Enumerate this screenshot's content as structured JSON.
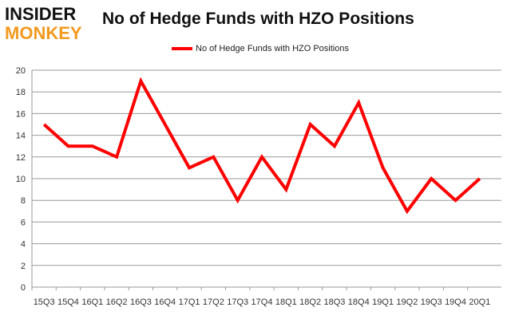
{
  "logo": {
    "line1": "INSIDER",
    "line2": "MONKEY"
  },
  "chart_data": {
    "type": "line",
    "title": "No of Hedge Funds with HZO Positions",
    "categories": [
      "15Q3",
      "15Q4",
      "16Q1",
      "16Q2",
      "16Q3",
      "16Q4",
      "17Q1",
      "17Q2",
      "17Q3",
      "17Q4",
      "18Q1",
      "18Q2",
      "18Q3",
      "18Q4",
      "19Q1",
      "19Q2",
      "19Q3",
      "19Q4",
      "20Q1"
    ],
    "series": [
      {
        "name": "No of Hedge Funds with HZO Positions",
        "color": "#ff0000",
        "values": [
          15,
          13,
          13,
          12,
          19,
          15,
          11,
          12,
          8,
          12,
          9,
          15,
          13,
          17,
          11,
          7,
          10,
          8,
          10
        ]
      }
    ],
    "ylim": [
      0,
      20
    ],
    "yticks": [
      0,
      2,
      4,
      6,
      8,
      10,
      12,
      14,
      16,
      18,
      20
    ],
    "grid": true,
    "legend": "top-center"
  }
}
